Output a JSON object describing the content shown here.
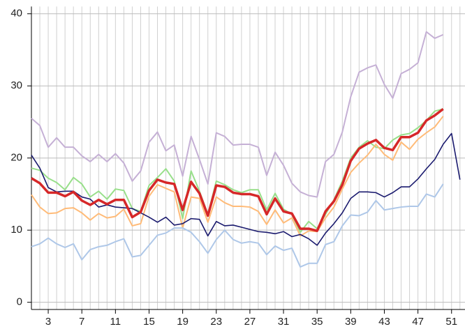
{
  "chart_data": {
    "type": "line",
    "x": [
      1,
      2,
      3,
      4,
      5,
      6,
      7,
      8,
      9,
      10,
      11,
      12,
      13,
      14,
      15,
      16,
      17,
      18,
      19,
      20,
      21,
      22,
      23,
      24,
      25,
      26,
      27,
      28,
      29,
      30,
      31,
      32,
      33,
      34,
      35,
      36,
      37,
      38,
      39,
      40,
      41,
      42,
      43,
      44,
      45,
      46,
      47,
      48,
      49,
      50,
      51,
      52
    ],
    "xlim": [
      1,
      52.6
    ],
    "xticks": [
      3,
      7,
      11,
      15,
      19,
      23,
      27,
      31,
      35,
      39,
      43,
      47,
      51
    ],
    "xgrid_step": 1,
    "ylim": [
      -1,
      41
    ],
    "yticks": [
      0,
      10,
      20,
      30,
      40
    ],
    "grid": true,
    "series": [
      {
        "color": "#c5b0d5",
        "width": 2,
        "values": [
          25.5,
          24.5,
          21.5,
          22.8,
          21.5,
          21.5,
          20.3,
          19.5,
          20.5,
          19.5,
          20.6,
          19.3,
          16.8,
          18.2,
          22.2,
          23.6,
          21,
          21.8,
          17.5,
          23,
          19.8,
          16.4,
          23.5,
          23,
          21.8,
          21.9,
          21.9,
          21.5,
          17.6,
          20.8,
          19,
          16.5,
          15.3,
          14.8,
          14.6,
          19.5,
          20.5,
          23.6,
          28.5,
          31.9,
          32.5,
          32.9,
          30.2,
          28.3,
          31.7,
          32.3,
          33.2,
          37.5,
          36.6,
          37.1,
          null,
          null
        ]
      },
      {
        "color": "#98df8a",
        "width": 2,
        "values": [
          18.6,
          18.3,
          17.2,
          16.6,
          15.6,
          17.3,
          16.4,
          14.6,
          15.4,
          14.3,
          15.7,
          15.5,
          13,
          12.6,
          16.2,
          17.3,
          18.5,
          16.8,
          11.6,
          18.2,
          15.4,
          12.2,
          16.8,
          16.3,
          15.6,
          15.2,
          15.6,
          15.6,
          12.8,
          15.1,
          12.9,
          12.2,
          9.7,
          11.2,
          10.2,
          12.2,
          14.2,
          16.8,
          20,
          21.5,
          22.4,
          21.5,
          21.3,
          22.5,
          23.2,
          23.4,
          24.2,
          25.2,
          26.5,
          26.8,
          null,
          null
        ]
      },
      {
        "color": "#ffbb78",
        "width": 2,
        "values": [
          14.9,
          13.2,
          12.3,
          12.4,
          13,
          13.1,
          12.4,
          11.4,
          12.3,
          11.7,
          11.9,
          12.9,
          10.6,
          10.9,
          14.7,
          16.3,
          15.8,
          15.3,
          10.3,
          14.6,
          14.4,
          11.1,
          14.6,
          13.8,
          13.3,
          13.3,
          13.2,
          12.6,
          10.8,
          12.8,
          11,
          11.7,
          9.2,
          9.9,
          9.8,
          11.7,
          13.2,
          15.7,
          18,
          19.3,
          20.4,
          21.9,
          20.5,
          19.7,
          22.2,
          21.2,
          22.6,
          23.5,
          24.3,
          25.8,
          null,
          null
        ]
      },
      {
        "color": "#1a1a6e",
        "width": 1.6,
        "values": [
          20.4,
          18.6,
          15.9,
          15.3,
          15.4,
          15.4,
          14.6,
          14.3,
          13.2,
          13.5,
          13.2,
          13.1,
          13,
          12.4,
          11.8,
          11.1,
          11.8,
          10.7,
          10.9,
          11.6,
          11.5,
          9.2,
          11.2,
          10.6,
          10.7,
          10.4,
          10.1,
          9.8,
          9.7,
          9.5,
          9.8,
          9.1,
          9.4,
          8.8,
          7.9,
          9.6,
          10.9,
          12.4,
          14.4,
          15.3,
          15.3,
          15.2,
          14.6,
          15.2,
          16,
          16,
          17.1,
          18.5,
          19.8,
          21.9,
          23.4,
          17
        ]
      },
      {
        "color": "#aec7e8",
        "width": 2,
        "values": [
          7.7,
          8.1,
          8.9,
          8.1,
          7.6,
          8.1,
          5.9,
          7.3,
          7.7,
          7.9,
          8.4,
          8.8,
          6.3,
          6.5,
          7.9,
          9.3,
          9.6,
          10.3,
          10.3,
          9.7,
          8.4,
          6.8,
          8.7,
          10,
          8.7,
          8.2,
          8.4,
          8.2,
          6.6,
          7.8,
          7.2,
          7.5,
          4.9,
          5.4,
          5.4,
          8,
          8.4,
          10.6,
          12.1,
          12,
          12.5,
          14.1,
          12.8,
          13,
          13.2,
          13.3,
          13.3,
          15,
          14.6,
          16.4,
          null,
          null
        ]
      },
      {
        "color": "#d62728",
        "width": 3.5,
        "values": [
          17.2,
          16.5,
          15.2,
          15.2,
          14.7,
          15.3,
          14.1,
          13.5,
          14.2,
          13.6,
          14.2,
          14.2,
          11.8,
          12.5,
          15.5,
          17,
          16.6,
          16.4,
          12.8,
          16.7,
          15.1,
          12,
          16.2,
          16,
          15.2,
          15,
          15,
          14.7,
          12.2,
          14.4,
          12.6,
          12.3,
          10.2,
          10.2,
          9.9,
          12.6,
          14,
          16.3,
          19.6,
          21.3,
          22,
          22.5,
          21.4,
          21.1,
          22.9,
          22.9,
          23.5,
          25.2,
          25.9,
          26.8,
          null,
          null
        ]
      }
    ]
  }
}
